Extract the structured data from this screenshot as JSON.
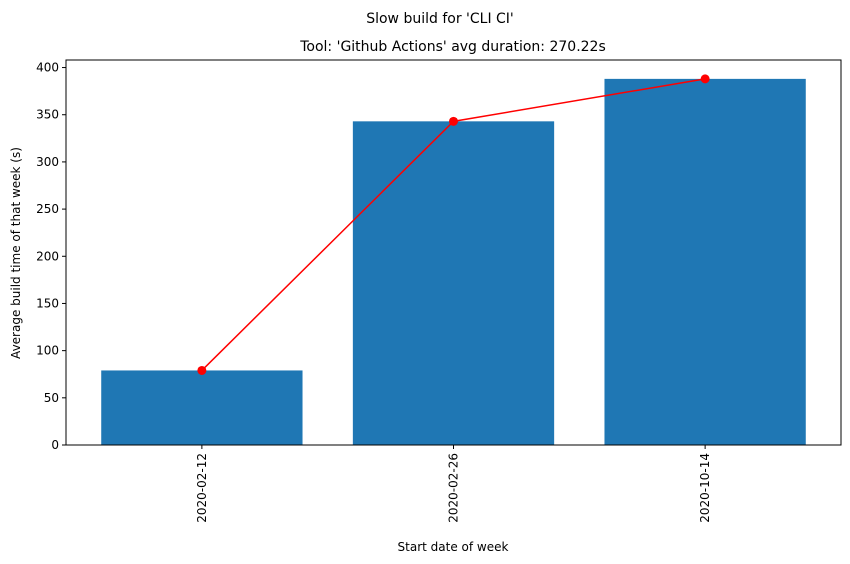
{
  "chart_data": {
    "type": "bar",
    "suptitle": "Slow build for 'CLI CI'",
    "title": "Tool: 'Github Actions' avg duration: 270.22s",
    "xlabel": "Start date of week",
    "ylabel": "Average build time of that week (s)",
    "categories": [
      "2020-02-12",
      "2020-02-26",
      "2020-10-14"
    ],
    "values": [
      79,
      343,
      388
    ],
    "line_values": [
      79,
      343,
      388
    ],
    "ylim": [
      0,
      408
    ],
    "yticks": [
      0,
      50,
      100,
      150,
      200,
      250,
      300,
      350,
      400
    ],
    "grid": false,
    "colors": {
      "bar": "#1f77b4",
      "line": "#ff0000"
    }
  }
}
